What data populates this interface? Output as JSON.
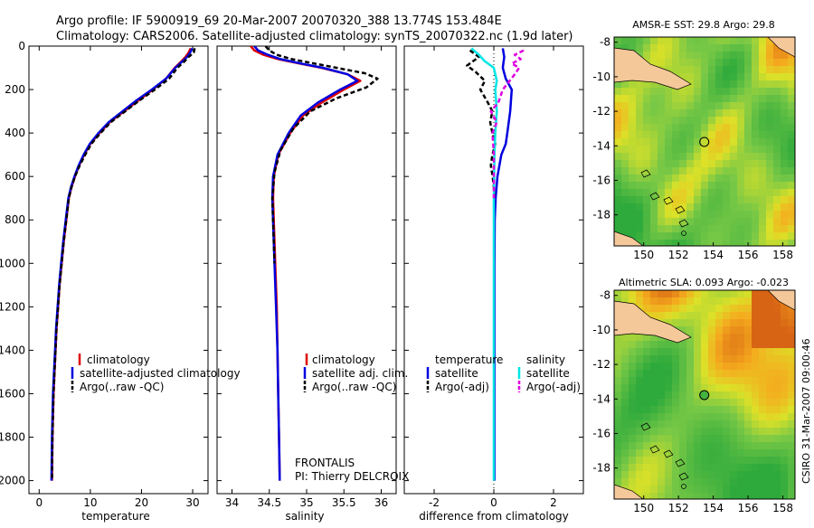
{
  "header": {
    "line1": "Argo profile: IF 5900919_69 20-Mar-2007 20070320_388 13.774S 153.484E",
    "line2": "Climatology: CARS2006. Satellite-adjusted climatology: synTS_20070322.nc (1.9d later)"
  },
  "credit": "CSIRO 31-Mar-2007 09:00:46",
  "colors": {
    "red": "#e00000",
    "blue": "#0000e0",
    "black": "#000000",
    "cyan": "#00e6e6",
    "magenta": "#e000e0",
    "land": "#f5c89a"
  },
  "chart_data": [
    {
      "type": "line",
      "id": "temperature",
      "xlabel": "temperature",
      "xlim": [
        -2,
        33
      ],
      "ylim": [
        2060,
        0
      ],
      "xticks": [
        0,
        10,
        20,
        30
      ],
      "yticks": [
        0,
        200,
        400,
        600,
        800,
        1000,
        1200,
        1400,
        1600,
        1800,
        2000
      ],
      "legend": [
        "climatology",
        "satellite-adjusted climatology",
        "Argo(..raw -QC)"
      ],
      "series": [
        {
          "name": "climatology",
          "color": "red",
          "style": "solid",
          "points": [
            [
              29.6,
              10
            ],
            [
              29.2,
              30
            ],
            [
              28.6,
              50
            ],
            [
              27.8,
              70
            ],
            [
              26.5,
              100
            ],
            [
              24.8,
              150
            ],
            [
              22.2,
              200
            ],
            [
              19.4,
              250
            ],
            [
              16.6,
              300
            ],
            [
              13.8,
              350
            ],
            [
              11.8,
              400
            ],
            [
              10.0,
              450
            ],
            [
              8.8,
              500
            ],
            [
              7.8,
              550
            ],
            [
              7.0,
              600
            ],
            [
              6.3,
              650
            ],
            [
              5.8,
              700
            ],
            [
              5.3,
              800
            ],
            [
              4.8,
              900
            ],
            [
              4.4,
              1000
            ],
            [
              4.0,
              1100
            ],
            [
              3.7,
              1200
            ],
            [
              3.4,
              1300
            ],
            [
              3.2,
              1400
            ],
            [
              3.0,
              1500
            ],
            [
              2.8,
              1600
            ],
            [
              2.6,
              1800
            ],
            [
              2.5,
              2000
            ]
          ]
        },
        {
          "name": "satellite-adjusted climatology",
          "color": "blue",
          "style": "solid",
          "points": [
            [
              29.9,
              10
            ],
            [
              29.5,
              30
            ],
            [
              28.9,
              50
            ],
            [
              28.0,
              70
            ],
            [
              26.6,
              100
            ],
            [
              24.8,
              150
            ],
            [
              22.0,
              200
            ],
            [
              19.0,
              250
            ],
            [
              16.3,
              300
            ],
            [
              13.6,
              350
            ],
            [
              11.6,
              400
            ],
            [
              9.9,
              450
            ],
            [
              8.7,
              500
            ],
            [
              7.7,
              550
            ],
            [
              6.9,
              600
            ],
            [
              6.2,
              650
            ],
            [
              5.7,
              700
            ],
            [
              5.2,
              800
            ],
            [
              4.7,
              900
            ],
            [
              4.3,
              1000
            ],
            [
              3.9,
              1100
            ],
            [
              3.6,
              1200
            ],
            [
              3.3,
              1300
            ],
            [
              3.1,
              1400
            ],
            [
              2.9,
              1500
            ],
            [
              2.7,
              1600
            ],
            [
              2.5,
              1800
            ],
            [
              2.4,
              2000
            ]
          ]
        },
        {
          "name": "Argo(..raw -QC)",
          "color": "black",
          "style": "dashed",
          "points": [
            [
              30.4,
              10
            ],
            [
              30.2,
              30
            ],
            [
              29.2,
              50
            ],
            [
              28.4,
              70
            ],
            [
              27.0,
              100
            ],
            [
              25.4,
              150
            ],
            [
              22.6,
              200
            ],
            [
              19.6,
              250
            ],
            [
              16.8,
              300
            ],
            [
              14.0,
              350
            ],
            [
              12.0,
              400
            ],
            [
              10.2,
              450
            ],
            [
              9.0,
              500
            ],
            [
              7.9,
              550
            ],
            [
              7.0,
              600
            ],
            [
              6.3,
              650
            ],
            [
              5.8,
              700
            ],
            [
              5.3,
              800
            ],
            [
              4.8,
              900
            ],
            [
              4.4,
              1000
            ],
            [
              4.0,
              1100
            ],
            [
              3.7,
              1200
            ],
            [
              3.4,
              1300
            ],
            [
              3.2,
              1400
            ],
            [
              3.0,
              1500
            ],
            [
              2.8,
              1600
            ],
            [
              2.6,
              1800
            ],
            [
              2.5,
              2000
            ]
          ]
        }
      ]
    },
    {
      "type": "line",
      "id": "salinity",
      "xlabel": "salinity",
      "xlim": [
        33.8,
        36.2
      ],
      "ylim": [
        2060,
        0
      ],
      "xticks": [
        34,
        34.5,
        35,
        35.5,
        36
      ],
      "legend": [
        "climatology",
        "satellite adj. clim.",
        "Argo(..raw -QC)"
      ],
      "annotation": [
        "FRONTALIS",
        "PI: Thierry DELCROIX"
      ],
      "series": [
        {
          "name": "climatology",
          "color": "red",
          "style": "solid",
          "points": [
            [
              34.25,
              0
            ],
            [
              34.3,
              20
            ],
            [
              34.42,
              40
            ],
            [
              34.62,
              60
            ],
            [
              34.9,
              80
            ],
            [
              35.2,
              100
            ],
            [
              35.55,
              130
            ],
            [
              35.72,
              160
            ],
            [
              35.5,
              200
            ],
            [
              35.2,
              260
            ],
            [
              34.95,
              320
            ],
            [
              34.78,
              400
            ],
            [
              34.62,
              500
            ],
            [
              34.56,
              600
            ],
            [
              34.55,
              700
            ],
            [
              34.56,
              800
            ],
            [
              34.57,
              900
            ],
            [
              34.58,
              1000
            ],
            [
              34.6,
              1200
            ],
            [
              34.61,
              1400
            ],
            [
              34.62,
              1600
            ],
            [
              34.63,
              1800
            ],
            [
              34.64,
              2000
            ]
          ]
        },
        {
          "name": "satellite adj. clim.",
          "color": "blue",
          "style": "solid",
          "points": [
            [
              34.3,
              0
            ],
            [
              34.35,
              20
            ],
            [
              34.48,
              40
            ],
            [
              34.65,
              60
            ],
            [
              34.92,
              80
            ],
            [
              35.22,
              100
            ],
            [
              35.55,
              130
            ],
            [
              35.68,
              160
            ],
            [
              35.45,
              200
            ],
            [
              35.15,
              260
            ],
            [
              34.92,
              320
            ],
            [
              34.76,
              400
            ],
            [
              34.61,
              500
            ],
            [
              34.55,
              600
            ],
            [
              34.54,
              700
            ],
            [
              34.55,
              800
            ],
            [
              34.56,
              900
            ],
            [
              34.57,
              1000
            ],
            [
              34.59,
              1200
            ],
            [
              34.61,
              1400
            ],
            [
              34.62,
              1600
            ],
            [
              34.63,
              1800
            ],
            [
              34.64,
              2000
            ]
          ]
        },
        {
          "name": "Argo(..raw -QC)",
          "color": "black",
          "style": "dashed",
          "points": [
            [
              34.45,
              0
            ],
            [
              34.5,
              20
            ],
            [
              34.6,
              40
            ],
            [
              34.8,
              60
            ],
            [
              35.1,
              80
            ],
            [
              35.4,
              100
            ],
            [
              35.78,
              125
            ],
            [
              35.95,
              150
            ],
            [
              35.8,
              190
            ],
            [
              35.4,
              240
            ],
            [
              35.05,
              300
            ],
            [
              34.82,
              380
            ],
            [
              34.65,
              480
            ],
            [
              34.57,
              580
            ],
            [
              34.54,
              700
            ],
            [
              34.55,
              800
            ],
            [
              34.56,
              900
            ],
            [
              34.57,
              1000
            ]
          ]
        }
      ]
    },
    {
      "type": "line",
      "id": "difference",
      "xlabel": "difference from climatology",
      "xlim": [
        -3,
        3
      ],
      "ylim": [
        2060,
        0
      ],
      "xticks": [
        -2,
        0,
        2
      ],
      "legend_temperature": {
        "title": "temperature",
        "items": [
          "satellite",
          "Argo(-adj)"
        ]
      },
      "legend_salinity": {
        "title": "salinity",
        "items": [
          "satellite",
          "Argo(-adj)"
        ]
      },
      "series": [
        {
          "name": "temperature satellite",
          "color": "blue",
          "style": "solid",
          "points": [
            [
              0.3,
              10
            ],
            [
              0.35,
              50
            ],
            [
              0.3,
              100
            ],
            [
              0.4,
              150
            ],
            [
              0.6,
              200
            ],
            [
              0.55,
              300
            ],
            [
              0.45,
              400
            ],
            [
              0.4,
              450
            ],
            [
              0.25,
              500
            ],
            [
              0.12,
              600
            ],
            [
              0.06,
              700
            ],
            [
              0.03,
              800
            ],
            [
              0.02,
              1000
            ],
            [
              0.02,
              1500
            ],
            [
              0.02,
              2000
            ]
          ]
        },
        {
          "name": "temperature Argo(-adj)",
          "color": "black",
          "style": "dashed",
          "points": [
            [
              -0.8,
              20
            ],
            [
              -0.5,
              50
            ],
            [
              -0.9,
              90
            ],
            [
              -0.6,
              120
            ],
            [
              -0.3,
              160
            ],
            [
              -0.45,
              200
            ],
            [
              -0.2,
              260
            ],
            [
              -0.05,
              300
            ],
            [
              -0.12,
              350
            ],
            [
              -0.05,
              400
            ],
            [
              0.05,
              450
            ],
            [
              -0.05,
              500
            ],
            [
              -0.1,
              550
            ],
            [
              -0.04,
              600
            ],
            [
              0.0,
              650
            ],
            [
              0.02,
              700
            ]
          ]
        },
        {
          "name": "salinity satellite",
          "color": "cyan",
          "style": "solid",
          "points": [
            [
              -0.75,
              10
            ],
            [
              -0.5,
              40
            ],
            [
              -0.3,
              70
            ],
            [
              0.0,
              100
            ],
            [
              0.05,
              130
            ],
            [
              0.1,
              160
            ],
            [
              0.05,
              200
            ],
            [
              0.1,
              300
            ],
            [
              0.05,
              400
            ],
            [
              0.02,
              500
            ],
            [
              0.0,
              700
            ],
            [
              0.0,
              1000
            ],
            [
              0.0,
              1500
            ],
            [
              0.0,
              2000
            ]
          ]
        },
        {
          "name": "salinity Argo(-adj)",
          "color": "magenta",
          "style": "dashed",
          "points": [
            [
              1.0,
              20
            ],
            [
              0.7,
              40
            ],
            [
              0.9,
              60
            ],
            [
              0.6,
              80
            ],
            [
              0.85,
              100
            ],
            [
              0.7,
              130
            ],
            [
              0.3,
              200
            ],
            [
              0.15,
              260
            ],
            [
              -0.1,
              300
            ],
            [
              0.1,
              350
            ],
            [
              -0.05,
              400
            ],
            [
              -0.02,
              450
            ],
            [
              0.0,
              500
            ],
            [
              0.0,
              600
            ],
            [
              0.0,
              700
            ]
          ]
        }
      ]
    },
    {
      "type": "heatmap",
      "id": "sst-map",
      "title": "AMSR-E SST: 29.8 Argo: 29.8",
      "xlim": [
        148.3,
        158.7
      ],
      "ylim": [
        -19.8,
        -7.7
      ],
      "xticks": [
        150,
        152,
        154,
        156,
        158
      ],
      "yticks": [
        -8,
        -10,
        -12,
        -14,
        -16,
        -18
      ],
      "marker": {
        "lon": 153.484,
        "lat": -13.774
      }
    },
    {
      "type": "heatmap",
      "id": "sla-map",
      "title": "Altimetric SLA: 0.093 Argo: -0.023",
      "xlim": [
        148.3,
        158.7
      ],
      "ylim": [
        -19.8,
        -7.7
      ],
      "xticks": [
        150,
        152,
        154,
        156,
        158
      ],
      "yticks": [
        -8,
        -10,
        -12,
        -14,
        -16,
        -18
      ],
      "marker": {
        "lon": 153.484,
        "lat": -13.774
      }
    }
  ]
}
